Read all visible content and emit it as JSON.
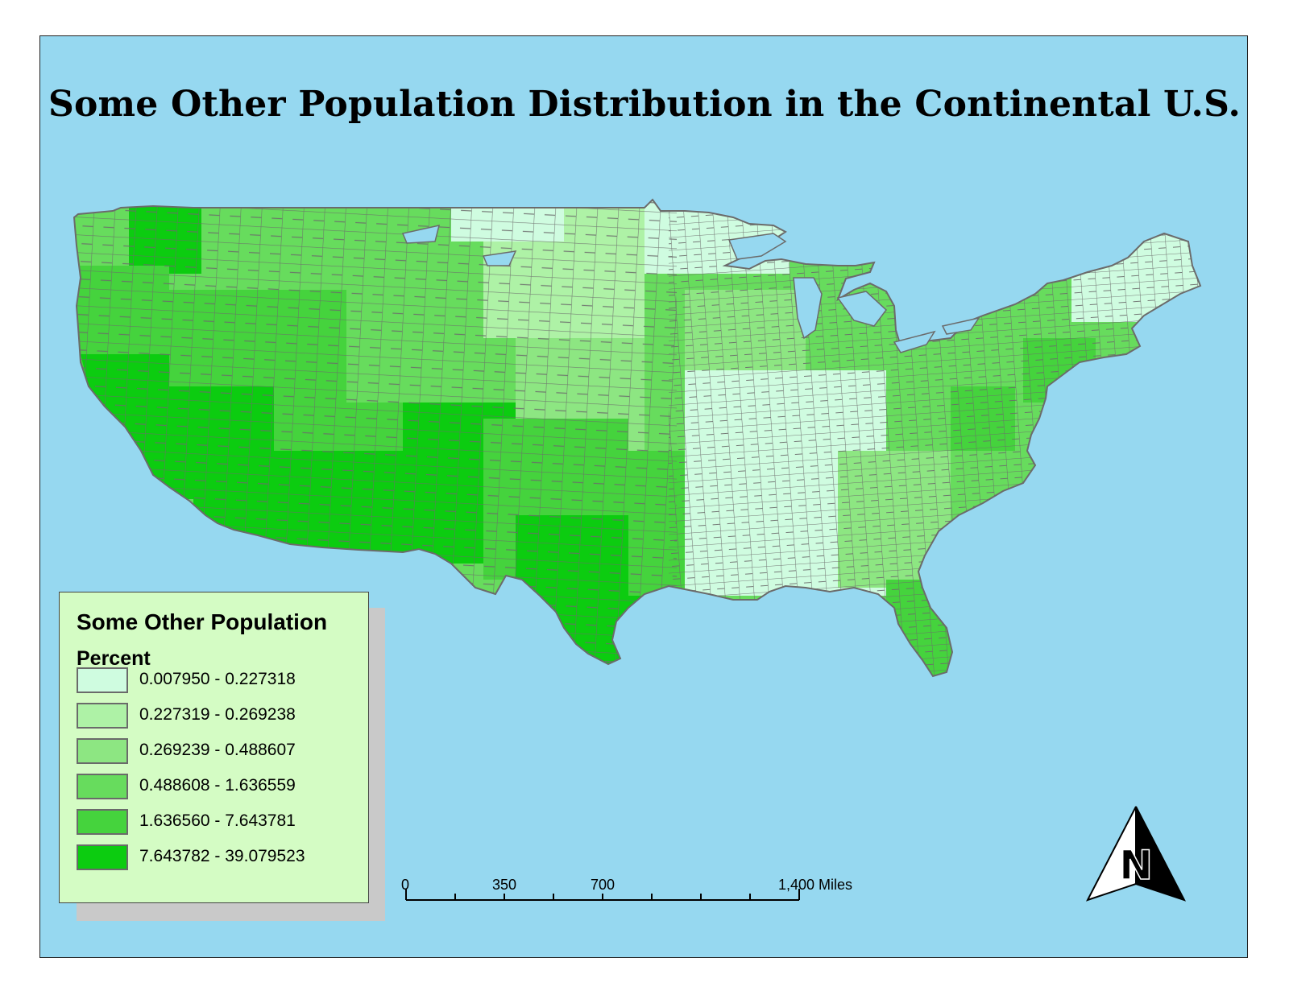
{
  "map": {
    "title": "Some Other Population Distribution in the Continental U.S.",
    "background_color": "#96d8f0",
    "land_border_color": "#6b6b6b"
  },
  "legend": {
    "title": "Some Other Population",
    "subtitle": "Percent",
    "items": [
      {
        "label": "0.007950 - 0.227318",
        "color": "#cffce0"
      },
      {
        "label": "0.227319 - 0.269238",
        "color": "#aef2a6"
      },
      {
        "label": "0.269239 - 0.488607",
        "color": "#8de682"
      },
      {
        "label": "0.488608 - 1.636559",
        "color": "#67dc5d"
      },
      {
        "label": "1.636560 - 7.643781",
        "color": "#45d33d"
      },
      {
        "label": "7.643782 - 39.079523",
        "color": "#0ccc10"
      }
    ]
  },
  "scale_bar": {
    "labels": [
      "0",
      "350",
      "700",
      "1,400 Miles"
    ]
  },
  "north_arrow": {
    "icon": "north-arrow-icon",
    "letter": "N"
  }
}
